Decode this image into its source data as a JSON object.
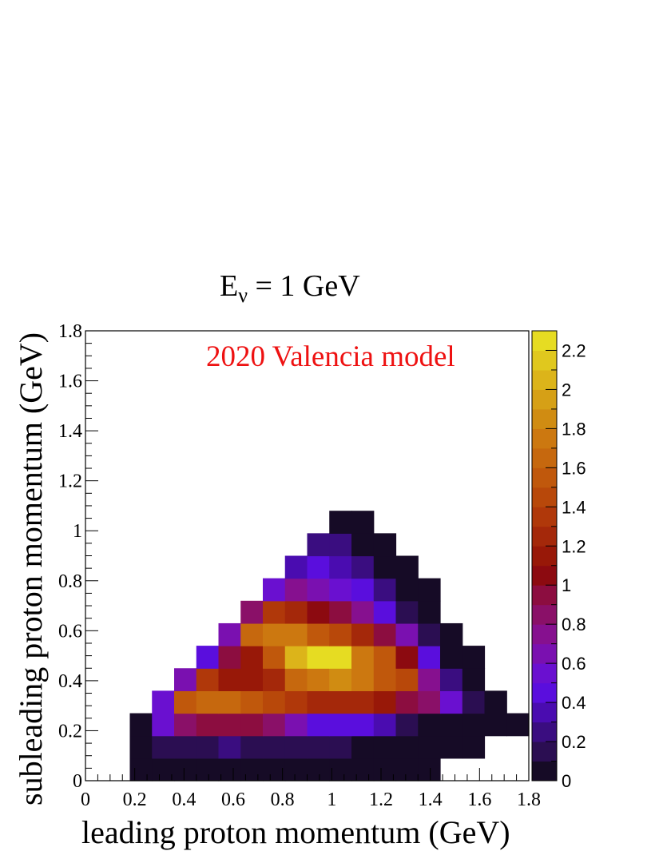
{
  "chart_data": {
    "type": "heatmap",
    "title_main": "E",
    "title_sub": "ν",
    "title_rest": " = 1 GeV",
    "annotation": "2020 Valencia model",
    "annotation_color": "#ee1111",
    "xlabel": "leading proton momentum (GeV)",
    "ylabel": "subleading proton momentum (GeV)",
    "xlim": [
      0,
      1.8
    ],
    "ylim": [
      0,
      1.8
    ],
    "zlim": [
      0,
      2.3
    ],
    "bin_width": 0.09,
    "x_tick_labels": [
      "0",
      "0.2",
      "0.4",
      "0.6",
      "0.8",
      "1",
      "1.2",
      "1.4",
      "1.6",
      "1.8"
    ],
    "y_tick_labels": [
      "0",
      "0.2",
      "0.4",
      "0.6",
      "0.8",
      "1",
      "1.2",
      "1.4",
      "1.6",
      "1.8"
    ],
    "z_tick_labels": [
      "0",
      "0.2",
      "0.4",
      "0.6",
      "0.8",
      "1",
      "1.2",
      "1.4",
      "1.6",
      "1.8",
      "2",
      "2.2"
    ],
    "palette": [
      "#160b26",
      "#2b0e52",
      "#3a0d80",
      "#4a0cb0",
      "#5a0edd",
      "#6a10d0",
      "#7a10b0",
      "#86108f",
      "#8a1068",
      "#8c0d40",
      "#8c0a10",
      "#981808",
      "#a4280a",
      "#b0380a",
      "#b8480a",
      "#c0580c",
      "#c6680e",
      "#cc7810",
      "#d08c12",
      "#d6a016",
      "#dcb41a",
      "#e0c81e",
      "#e6dc22"
    ],
    "rows": [
      {
        "y": 0.0,
        "x_start": 0.18,
        "values": [
          0.01,
          0.01,
          0.01,
          0.01,
          0.01,
          0.01,
          0.01,
          0.01,
          0.01,
          0.01,
          0.01,
          0.01,
          0.01,
          0.01
        ]
      },
      {
        "y": 0.09,
        "x_start": 0.18,
        "values": [
          0.02,
          0.12,
          0.12,
          0.14,
          0.28,
          0.12,
          0.12,
          0.12,
          0.1,
          0.1,
          0.05,
          0.04,
          0.04,
          0.05,
          0.05,
          0.05
        ]
      },
      {
        "y": 0.18,
        "x_start": 0.18,
        "values": [
          0.04,
          0.52,
          0.8,
          0.95,
          0.95,
          0.95,
          0.82,
          0.6,
          0.48,
          0.48,
          0.4,
          0.3,
          0.18,
          0.08,
          0.06,
          0.05,
          0.04,
          0.03
        ]
      },
      {
        "y": 0.27,
        "x_start": 0.27,
        "values": [
          0.55,
          1.55,
          1.6,
          1.6,
          1.5,
          1.4,
          1.3,
          1.25,
          1.2,
          1.2,
          1.1,
          0.95,
          0.85,
          0.5,
          0.18,
          0.04
        ]
      },
      {
        "y": 0.36,
        "x_start": 0.36,
        "values": [
          0.65,
          1.3,
          1.15,
          1.15,
          1.25,
          1.6,
          1.75,
          1.8,
          1.7,
          1.55,
          1.45,
          0.75,
          0.2,
          0.04
        ]
      },
      {
        "y": 0.45,
        "x_start": 0.45,
        "values": [
          0.42,
          0.9,
          1.1,
          1.55,
          2.05,
          2.25,
          2.25,
          1.75,
          1.5,
          1.05,
          0.48,
          0.04,
          0.04
        ]
      },
      {
        "y": 0.54,
        "x_start": 0.54,
        "values": [
          0.6,
          1.6,
          1.75,
          1.75,
          1.55,
          1.4,
          1.25,
          0.95,
          0.62,
          0.15,
          0.04
        ]
      },
      {
        "y": 0.63,
        "x_start": 0.63,
        "values": [
          0.82,
          1.35,
          1.2,
          1.0,
          0.9,
          0.78,
          0.48,
          0.18,
          0.04
        ]
      },
      {
        "y": 0.72,
        "x_start": 0.72,
        "values": [
          0.5,
          0.72,
          0.62,
          0.5,
          0.42,
          0.22,
          0.06,
          0.04
        ]
      },
      {
        "y": 0.81,
        "x_start": 0.81,
        "values": [
          0.38,
          0.45,
          0.35,
          0.2,
          0.07,
          0.05
        ]
      },
      {
        "y": 0.9,
        "x_start": 0.9,
        "values": [
          0.2,
          0.2,
          0.05,
          0.05
        ]
      },
      {
        "y": 0.99,
        "x_start": 0.99,
        "values": [
          0.03,
          0.03
        ]
      }
    ]
  }
}
